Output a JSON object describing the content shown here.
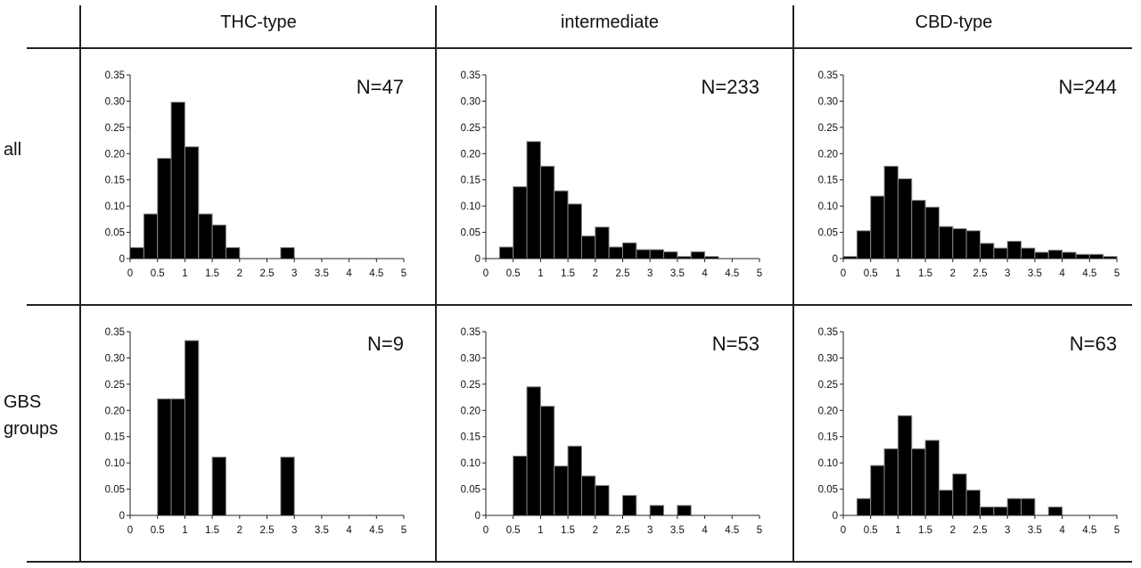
{
  "columns": [
    "THC-type",
    "intermediate",
    "CBD-type"
  ],
  "rows": [
    "all",
    "GBS\ngroups"
  ],
  "chart_data": [
    {
      "type": "bar",
      "panel": "all / THC-type",
      "annotation": "N=47",
      "xlim": [
        0,
        5
      ],
      "ylim": [
        0,
        0.35
      ],
      "x_ticks": [
        "0",
        "0.5",
        "1",
        "1.5",
        "2",
        "2.5",
        "3",
        "3.5",
        "4",
        "4.5",
        "5"
      ],
      "y_ticks": [
        "0",
        "0.05",
        "0.10",
        "0.15",
        "0.20",
        "0.25",
        "0.30",
        "0.35"
      ],
      "bin_width": 0.25,
      "bins": [
        [
          0,
          0.021
        ],
        [
          0.25,
          0.085
        ],
        [
          0.5,
          0.191
        ],
        [
          0.75,
          0.298
        ],
        [
          1.0,
          0.213
        ],
        [
          1.25,
          0.085
        ],
        [
          1.5,
          0.064
        ],
        [
          1.75,
          0.021
        ],
        [
          2.75,
          0.021
        ]
      ]
    },
    {
      "type": "bar",
      "panel": "all / intermediate",
      "annotation": "N=233",
      "xlim": [
        0,
        5
      ],
      "ylim": [
        0,
        0.35
      ],
      "x_ticks": [
        "0",
        "0.5",
        "1",
        "1.5",
        "2",
        "2.5",
        "3",
        "3.5",
        "4",
        "4.5",
        "5"
      ],
      "y_ticks": [
        "0",
        "0.05",
        "0.10",
        "0.15",
        "0.20",
        "0.25",
        "0.30",
        "0.35"
      ],
      "bin_width": 0.25,
      "bins": [
        [
          0.25,
          0.022
        ],
        [
          0.5,
          0.137
        ],
        [
          0.75,
          0.223
        ],
        [
          1.0,
          0.176
        ],
        [
          1.25,
          0.129
        ],
        [
          1.5,
          0.104
        ],
        [
          1.75,
          0.043
        ],
        [
          2.0,
          0.06
        ],
        [
          2.25,
          0.022
        ],
        [
          2.5,
          0.03
        ],
        [
          2.75,
          0.017
        ],
        [
          3.0,
          0.017
        ],
        [
          3.25,
          0.013
        ],
        [
          3.5,
          0.004
        ],
        [
          3.75,
          0.013
        ],
        [
          4.0,
          0.004
        ]
      ]
    },
    {
      "type": "bar",
      "panel": "all / CBD-type",
      "annotation": "N=244",
      "xlim": [
        0,
        5
      ],
      "ylim": [
        0,
        0.35
      ],
      "x_ticks": [
        "0",
        "0.5",
        "1",
        "1.5",
        "2",
        "2.5",
        "3",
        "3.5",
        "4",
        "4.5",
        "5"
      ],
      "y_ticks": [
        "0",
        "0.05",
        "0.10",
        "0.15",
        "0.20",
        "0.25",
        "0.30",
        "0.35"
      ],
      "bin_width": 0.25,
      "bins": [
        [
          0,
          0.004
        ],
        [
          0.25,
          0.053
        ],
        [
          0.5,
          0.119
        ],
        [
          0.75,
          0.176
        ],
        [
          1.0,
          0.152
        ],
        [
          1.25,
          0.111
        ],
        [
          1.5,
          0.098
        ],
        [
          1.75,
          0.061
        ],
        [
          2.0,
          0.057
        ],
        [
          2.25,
          0.053
        ],
        [
          2.5,
          0.029
        ],
        [
          2.75,
          0.02
        ],
        [
          3.0,
          0.033
        ],
        [
          3.25,
          0.02
        ],
        [
          3.5,
          0.012
        ],
        [
          3.75,
          0.016
        ],
        [
          4.0,
          0.012
        ],
        [
          4.25,
          0.008
        ],
        [
          4.5,
          0.008
        ],
        [
          4.75,
          0.004
        ]
      ]
    },
    {
      "type": "bar",
      "panel": "GBS groups / THC-type",
      "annotation": "N=9",
      "xlim": [
        0,
        5
      ],
      "ylim": [
        0,
        0.35
      ],
      "x_ticks": [
        "0",
        "0.5",
        "1",
        "1.5",
        "2",
        "2.5",
        "3",
        "3.5",
        "4",
        "4.5",
        "5"
      ],
      "y_ticks": [
        "0",
        "0.05",
        "0.10",
        "0.15",
        "0.20",
        "0.25",
        "0.30",
        "0.35"
      ],
      "bin_width": 0.25,
      "bins": [
        [
          0.5,
          0.222
        ],
        [
          0.75,
          0.222
        ],
        [
          1.0,
          0.333
        ],
        [
          1.5,
          0.111
        ],
        [
          2.75,
          0.111
        ]
      ]
    },
    {
      "type": "bar",
      "panel": "GBS groups / intermediate",
      "annotation": "N=53",
      "xlim": [
        0,
        5
      ],
      "ylim": [
        0,
        0.35
      ],
      "x_ticks": [
        "0",
        "0.5",
        "1",
        "1.5",
        "2",
        "2.5",
        "3",
        "3.5",
        "4",
        "4.5",
        "5"
      ],
      "y_ticks": [
        "0",
        "0.05",
        "0.10",
        "0.15",
        "0.20",
        "0.25",
        "0.30",
        "0.35"
      ],
      "bin_width": 0.25,
      "bins": [
        [
          0.5,
          0.113
        ],
        [
          0.75,
          0.245
        ],
        [
          1.0,
          0.208
        ],
        [
          1.25,
          0.094
        ],
        [
          1.5,
          0.132
        ],
        [
          1.75,
          0.075
        ],
        [
          2.0,
          0.057
        ],
        [
          2.5,
          0.038
        ],
        [
          3.0,
          0.019
        ],
        [
          3.5,
          0.019
        ]
      ]
    },
    {
      "type": "bar",
      "panel": "GBS groups / CBD-type",
      "annotation": "N=63",
      "xlim": [
        0,
        5
      ],
      "ylim": [
        0,
        0.35
      ],
      "x_ticks": [
        "0",
        "0.5",
        "1",
        "1.5",
        "2",
        "2.5",
        "3",
        "3.5",
        "4",
        "4.5",
        "5"
      ],
      "y_ticks": [
        "0",
        "0.05",
        "0.10",
        "0.15",
        "0.20",
        "0.25",
        "0.30",
        "0.35"
      ],
      "bin_width": 0.25,
      "bins": [
        [
          0.25,
          0.032
        ],
        [
          0.5,
          0.095
        ],
        [
          0.75,
          0.127
        ],
        [
          1.0,
          0.19
        ],
        [
          1.25,
          0.127
        ],
        [
          1.5,
          0.143
        ],
        [
          1.75,
          0.048
        ],
        [
          2.0,
          0.079
        ],
        [
          2.25,
          0.048
        ],
        [
          2.5,
          0.016
        ],
        [
          2.75,
          0.016
        ],
        [
          3.0,
          0.032
        ],
        [
          3.25,
          0.032
        ],
        [
          3.75,
          0.016
        ]
      ]
    }
  ]
}
